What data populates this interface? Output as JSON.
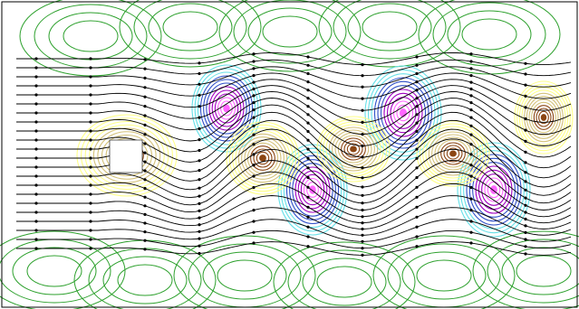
{
  "figure": {
    "kind": "streamlines-and-contours",
    "background": "#ffffff",
    "frame_color": "#000000",
    "obstacle_color": "#ffffff",
    "streamline_color": "#000000",
    "contour_far_color": "#2ca02c",
    "positive_vortex_colors": [
      "#ffff88",
      "#d4c27a",
      "#8b4513"
    ],
    "negative_vortex_colors": [
      "#66e0e8",
      "#3050c8",
      "#a000c0",
      "#ff66ff"
    ]
  }
}
